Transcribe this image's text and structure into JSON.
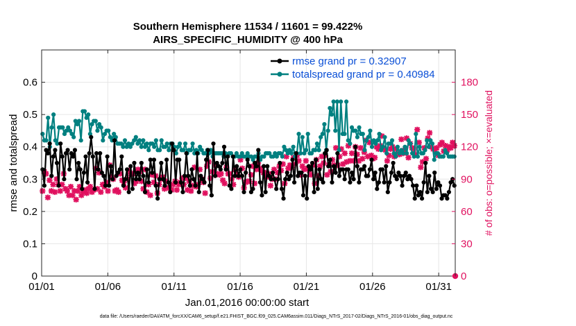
{
  "chart_data": {
    "type": "line",
    "title": "Southern Hemisphere 11534 / 11601 = 99.422%",
    "subtitle": "AIRS_SPECIFIC_HUMIDITY @ 400 hPa",
    "xlabel": "Jan.01,2016 00:00:00 start",
    "ylabel": "rmse and totalspread",
    "ylabel_right": "# of obs: o=possible; ×=evaluated",
    "footnote": "data file: /Users/raeder/DAI/ATM_forcXX/CAM6_setup/f.e21.FHIST_BGC.f09_025.CAM6assim.011/Diags_NTrS_2017-02/Diags_NTrS_2016-01/obs_diag_output.nc",
    "xlim": [
      0,
      31.25
    ],
    "ylim": [
      0,
      0.7
    ],
    "ylim_right": [
      0,
      210
    ],
    "x_ticks": [
      0,
      5,
      10,
      15,
      20,
      25,
      30
    ],
    "x_tick_labels": [
      "01/01",
      "01/06",
      "01/11",
      "01/16",
      "01/21",
      "01/26",
      "01/31"
    ],
    "y_ticks": [
      0,
      0.1,
      0.2,
      0.3,
      0.4,
      0.5,
      0.6
    ],
    "y_tick_labels": [
      "0",
      "0.1",
      "0.2",
      "0.3",
      "0.4",
      "0.5",
      "0.6"
    ],
    "y_right_ticks": [
      0,
      30,
      60,
      90,
      120,
      150,
      180
    ],
    "y_right_tick_labels": [
      "0",
      "30",
      "60",
      "90",
      "120",
      "150",
      "180"
    ],
    "legend_position": "top-right",
    "grid": true,
    "series": [
      {
        "name": "rmse grand pr = 0.32907",
        "color": "#000000",
        "axis": "left",
        "values": [
          0.33,
          0.28,
          0.39,
          0.38,
          0.41,
          0.31,
          0.37,
          0.39,
          0.35,
          0.28,
          0.41,
          0.37,
          0.3,
          0.38,
          0.39,
          0.33,
          0.38,
          0.37,
          0.39,
          0.3,
          0.35,
          0.33,
          0.27,
          0.32,
          0.37,
          0.29,
          0.38,
          0.43,
          0.37,
          0.27,
          0.38,
          0.33,
          0.38,
          0.32,
          0.31,
          0.28,
          0.37,
          0.28,
          0.34,
          0.3,
          0.42,
          0.31,
          0.32,
          0.33,
          0.37,
          0.28,
          0.3,
          0.33,
          0.26,
          0.34,
          0.27,
          0.35,
          0.3,
          0.32,
          0.3,
          0.35,
          0.31,
          0.26,
          0.33,
          0.29,
          0.36,
          0.32,
          0.36,
          0.28,
          0.24,
          0.3,
          0.35,
          0.3,
          0.28,
          0.36,
          0.29,
          0.26,
          0.41,
          0.39,
          0.29,
          0.36,
          0.36,
          0.29,
          0.26,
          0.31,
          0.38,
          0.31,
          0.28,
          0.33,
          0.3,
          0.28,
          0.38,
          0.26,
          0.31,
          0.3,
          0.29,
          0.36,
          0.39,
          0.28,
          0.25,
          0.41,
          0.31,
          0.35,
          0.34,
          0.33,
          0.35,
          0.4,
          0.33,
          0.37,
          0.28,
          0.27,
          0.37,
          0.31,
          0.34,
          0.31,
          0.33,
          0.31,
          0.26,
          0.32,
          0.36,
          0.34,
          0.26,
          0.27,
          0.35,
          0.34,
          0.39,
          0.29,
          0.25,
          0.34,
          0.26,
          0.34,
          0.31,
          0.3,
          0.32,
          0.3,
          0.27,
          0.3,
          0.35,
          0.27,
          0.24,
          0.3,
          0.32,
          0.3,
          0.31,
          0.36,
          0.29,
          0.38,
          0.31,
          0.32,
          0.32,
          0.25,
          0.31,
          0.24,
          0.34,
          0.33,
          0.35,
          0.26,
          0.36,
          0.27,
          0.33,
          0.3,
          0.29,
          0.38,
          0.39,
          0.34,
          0.36,
          0.29,
          0.34,
          0.32,
          0.38,
          0.31,
          0.33,
          0.33,
          0.3,
          0.33,
          0.33,
          0.29,
          0.32,
          0.3,
          0.4,
          0.34,
          0.29,
          0.33,
          0.33,
          0.34,
          0.31,
          0.31,
          0.33,
          0.36,
          0.3,
          0.32,
          0.27,
          0.29,
          0.33,
          0.33,
          0.29,
          0.34,
          0.26,
          0.29,
          0.32,
          0.35,
          0.31,
          0.3,
          0.32,
          0.31,
          0.28,
          0.31,
          0.32,
          0.3,
          0.31,
          0.3,
          0.28,
          0.24,
          0.28,
          0.25,
          0.26,
          0.24,
          0.29,
          0.35,
          0.26,
          0.31,
          0.27,
          0.26,
          0.32,
          0.27,
          0.29,
          0.28,
          0.24,
          0.25,
          0.25,
          0.24,
          0.26,
          0.29,
          0.3,
          0.28
        ]
      },
      {
        "name": "totalspread grand pr = 0.40984",
        "color": "#008080",
        "axis": "left",
        "values": [
          0.44,
          0.42,
          0.42,
          0.49,
          0.4,
          0.46,
          0.5,
          0.42,
          0.41,
          0.46,
          0.46,
          0.46,
          0.44,
          0.45,
          0.46,
          0.45,
          0.44,
          0.43,
          0.48,
          0.47,
          0.48,
          0.42,
          0.51,
          0.51,
          0.49,
          0.5,
          0.44,
          0.47,
          0.48,
          0.48,
          0.45,
          0.47,
          0.46,
          0.42,
          0.44,
          0.45,
          0.45,
          0.43,
          0.42,
          0.44,
          0.43,
          0.41,
          0.41,
          0.41,
          0.4,
          0.42,
          0.4,
          0.41,
          0.4,
          0.41,
          0.42,
          0.43,
          0.41,
          0.42,
          0.4,
          0.42,
          0.4,
          0.41,
          0.39,
          0.41,
          0.41,
          0.4,
          0.42,
          0.39,
          0.39,
          0.42,
          0.4,
          0.4,
          0.41,
          0.39,
          0.41,
          0.41,
          0.4,
          0.38,
          0.4,
          0.41,
          0.39,
          0.39,
          0.41,
          0.38,
          0.39,
          0.39,
          0.41,
          0.38,
          0.39,
          0.38,
          0.4,
          0.39,
          0.38,
          0.38,
          0.39,
          0.38,
          0.39,
          0.37,
          0.38,
          0.38,
          0.38,
          0.38,
          0.38,
          0.37,
          0.38,
          0.37,
          0.38,
          0.38,
          0.37,
          0.37,
          0.38,
          0.37,
          0.37,
          0.38,
          0.37,
          0.37,
          0.38,
          0.37,
          0.37,
          0.36,
          0.37,
          0.37,
          0.38,
          0.36,
          0.37,
          0.37,
          0.38,
          0.38,
          0.38,
          0.37,
          0.37,
          0.38,
          0.37,
          0.38,
          0.38,
          0.37,
          0.4,
          0.39,
          0.38,
          0.39,
          0.38,
          0.4,
          0.37,
          0.38,
          0.44,
          0.38,
          0.43,
          0.38,
          0.39,
          0.44,
          0.38,
          0.38,
          0.39,
          0.39,
          0.41,
          0.39,
          0.43,
          0.44,
          0.47,
          0.39,
          0.45,
          0.52,
          0.5,
          0.54,
          0.45,
          0.54,
          0.39,
          0.54,
          0.44,
          0.44,
          0.54,
          0.42,
          0.41,
          0.46,
          0.45,
          0.45,
          0.43,
          0.46,
          0.44,
          0.44,
          0.39,
          0.42,
          0.43,
          0.45,
          0.4,
          0.42,
          0.41,
          0.42,
          0.44,
          0.39,
          0.4,
          0.43,
          0.38,
          0.41,
          0.41,
          0.42,
          0.38,
          0.37,
          0.4,
          0.38,
          0.39,
          0.38,
          0.4,
          0.38,
          0.42,
          0.41,
          0.38,
          0.37,
          0.44,
          0.37,
          0.4,
          0.38,
          0.38,
          0.39,
          0.42,
          0.4,
          0.42,
          0.41,
          0.36,
          0.38,
          0.38,
          0.37,
          0.37,
          0.37,
          0.39,
          0.38,
          0.37,
          0.37,
          0.37,
          0.37
        ]
      },
      {
        "name": "# of obs evaluated",
        "color": "#e0115f",
        "axis": "right",
        "values": [
          79,
          97,
          95,
          73,
          89,
          79,
          85,
          78,
          90,
          85,
          79,
          85,
          95,
          81,
          79,
          75,
          83,
          75,
          79,
          71,
          79,
          83,
          75,
          78,
          80,
          77,
          81,
          83,
          78,
          80,
          100,
          81,
          96,
          78,
          85,
          83,
          87,
          79,
          103,
          92,
          90,
          79,
          80,
          78,
          95,
          89,
          87,
          82,
          90,
          98,
          95,
          95,
          86,
          88,
          99,
          97,
          88,
          81,
          99,
          78,
          85,
          75,
          94,
          87,
          93,
          77,
          85,
          90,
          92,
          81,
          88,
          82,
          82,
          80,
          85,
          88,
          80,
          85,
          87,
          91,
          85,
          91,
          80,
          88,
          79,
          84,
          101,
          83,
          85,
          99,
          90,
          87,
          77,
          102,
          106,
          91,
          97,
          96,
          103,
          95,
          94,
          95,
          89,
          86,
          101,
          95,
          95,
          90,
          85,
          99,
          94,
          92,
          108,
          100,
          82,
          87,
          88,
          88,
          94,
          102,
          86,
          99,
          105,
          100,
          98,
          96,
          96,
          92,
          95,
          84,
          90,
          99,
          90,
          96,
          102,
          98,
          104,
          86,
          111,
          100,
          103,
          101,
          110,
          104,
          112,
          107,
          94,
          102,
          99,
          107,
          100,
          98,
          94,
          103,
          86,
          108,
          93,
          102,
          111,
          105,
          112,
          94,
          103,
          97,
          108,
          103,
          119,
          103,
          111,
          118,
          104,
          114,
          106,
          121,
          107,
          114,
          107,
          120,
          113,
          107,
          119,
          109,
          115,
          126,
          111,
          124,
          112,
          109,
          110,
          120,
          118,
          121,
          130,
          119,
          117,
          107,
          112,
          118,
          120,
          111,
          118,
          113,
          113,
          127,
          114,
          117,
          128,
          110,
          123,
          119,
          118,
          113,
          136,
          124,
          101,
          106,
          119,
          109,
          128,
          133,
          120,
          118,
          117,
          119,
          112,
          122,
          124,
          116,
          121,
          117,
          120,
          119,
          124,
          121
        ]
      }
    ],
    "possible_marker_last": {
      "x": 31.25,
      "value": 0
    }
  }
}
